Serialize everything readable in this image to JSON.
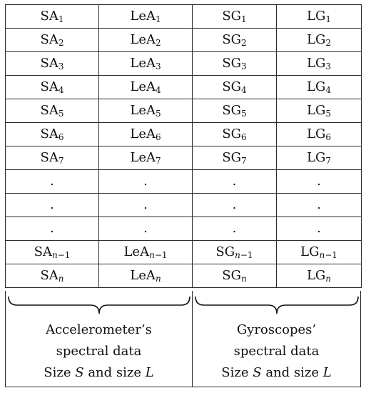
{
  "table": {
    "rows": [
      [
        "SA",
        "1",
        "LeA",
        "1",
        "SG",
        "1",
        "LG",
        "1"
      ],
      [
        "SA",
        "2",
        "LeA",
        "2",
        "SG",
        "2",
        "LG",
        "2"
      ],
      [
        "SA",
        "3",
        "LeA",
        "3",
        "SG",
        "3",
        "LG",
        "3"
      ],
      [
        "SA",
        "4",
        "LeA",
        "4",
        "SG",
        "4",
        "LG",
        "4"
      ],
      [
        "SA",
        "5",
        "LeA",
        "5",
        "SG",
        "5",
        "LG",
        "5"
      ],
      [
        "SA",
        "6",
        "LeA",
        "6",
        "SG",
        "6",
        "LG",
        "6"
      ],
      [
        "SA",
        "7",
        "LeA",
        "7",
        "SG",
        "7",
        "LG",
        "7"
      ]
    ],
    "dot": ".",
    "row_n_minus_1": {
      "c1": "SA",
      "c2": "LeA",
      "c3": "SG",
      "c4": "LG",
      "sub_var": "n",
      "sub_rest": "−1"
    },
    "row_n": {
      "c1": "SA",
      "c2": "LeA",
      "c3": "SG",
      "c4": "LG",
      "sub_var": "n"
    }
  },
  "captions": {
    "left": {
      "line1": "Accelerometer’s",
      "line2": "spectral data",
      "line3_pre": "Size ",
      "line3_var1": "S",
      "line3_mid": " and size ",
      "line3_var2": "L"
    },
    "right": {
      "line1": "Gyroscopes’",
      "line2": "spectral data",
      "line3_pre": "Size ",
      "line3_var1": "S",
      "line3_mid": " and size ",
      "line3_var2": "L"
    }
  }
}
